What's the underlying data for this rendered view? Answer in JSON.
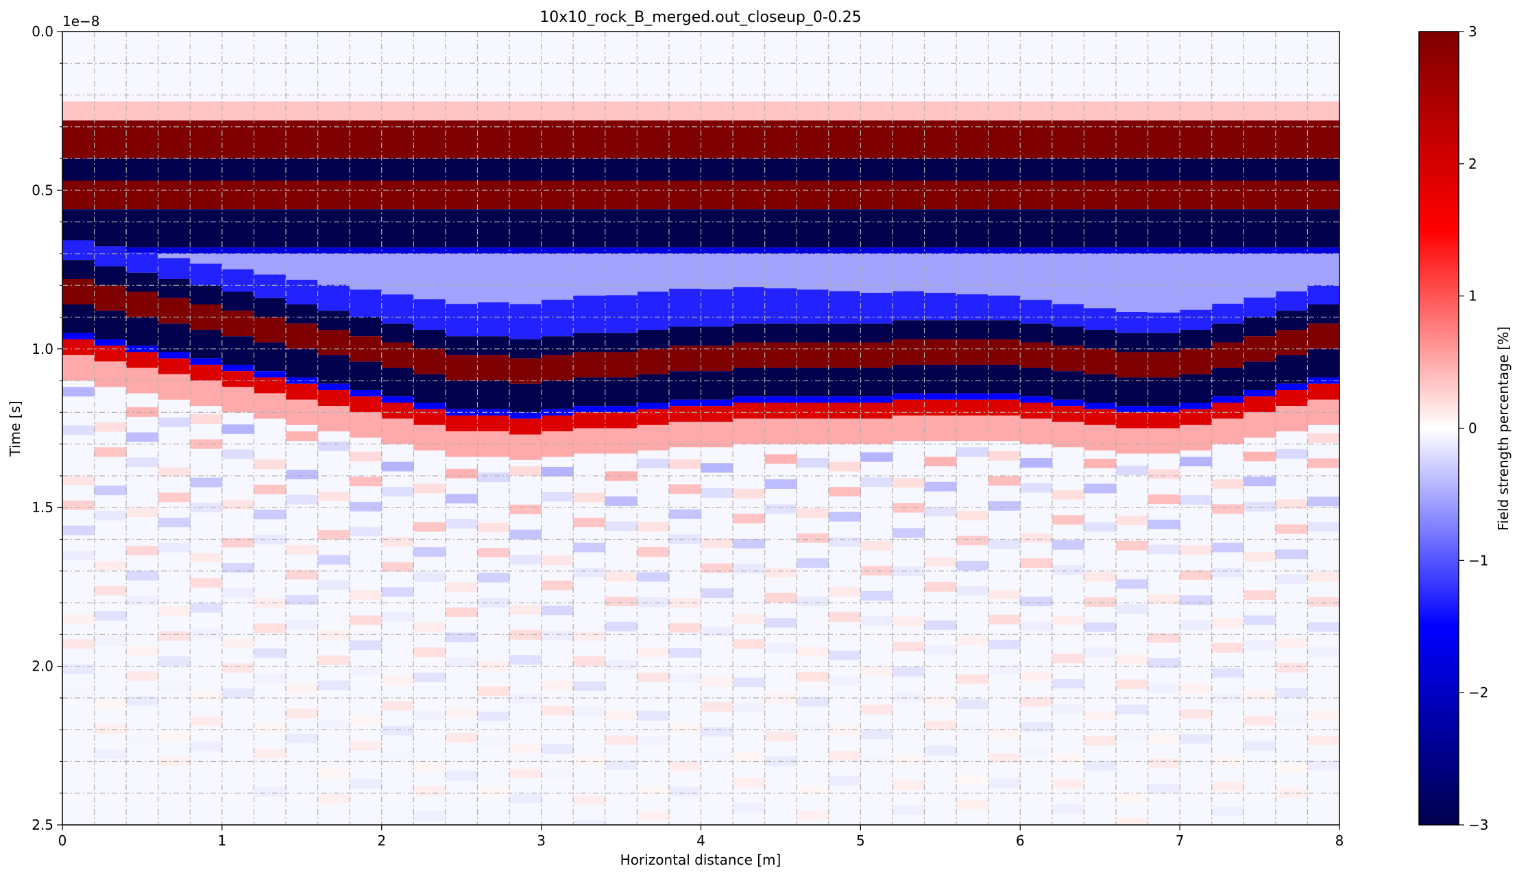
{
  "chart_data": {
    "type": "heatmap",
    "title": "10x10_rock_B_merged.out_closeup_0-0.25",
    "xlabel": "Horizontal distance [m]",
    "ylabel": "Time [s]",
    "y_offset_label": "1e−8",
    "xlim": [
      0,
      8
    ],
    "ylim": [
      2.5,
      0.0
    ],
    "y_inverted": true,
    "x_ticks": [
      "0",
      "1",
      "2",
      "3",
      "4",
      "5",
      "6",
      "7",
      "8"
    ],
    "y_ticks": [
      "0.0",
      "0.5",
      "1.0",
      "1.5",
      "2.0",
      "2.5"
    ],
    "grid": true,
    "colorbar": {
      "label": "Field strength percentage [%]",
      "range": [
        -3,
        3
      ],
      "ticks": [
        "3",
        "2",
        "1",
        "0",
        "−1",
        "−2",
        "−3"
      ],
      "colors": [
        "#00004c",
        "#0000ff",
        "#ffffff",
        "#ff0000",
        "#7f0000"
      ]
    },
    "trace_count": 40,
    "horizontal_bands": [
      {
        "t_start": 0.28,
        "t_end": 0.4,
        "value": 3
      },
      {
        "t_start": 0.4,
        "t_end": 0.47,
        "value": -3
      },
      {
        "t_start": 0.47,
        "t_end": 0.56,
        "value": 3
      },
      {
        "t_start": 0.56,
        "t_end": 0.68,
        "value": -3
      }
    ],
    "diffraction_front_start_time": [
      0.78,
      0.8,
      0.82,
      0.84,
      0.86,
      0.88,
      0.9,
      0.92,
      0.94,
      0.96,
      0.98,
      1.0,
      1.02,
      1.02,
      1.03,
      1.02,
      1.01,
      1.01,
      1.0,
      0.99,
      0.99,
      0.98,
      0.98,
      0.98,
      0.98,
      0.98,
      0.97,
      0.97,
      0.97,
      0.97,
      0.98,
      0.99,
      1.0,
      1.01,
      1.01,
      1.0,
      0.98,
      0.96,
      0.94,
      0.92
    ]
  }
}
